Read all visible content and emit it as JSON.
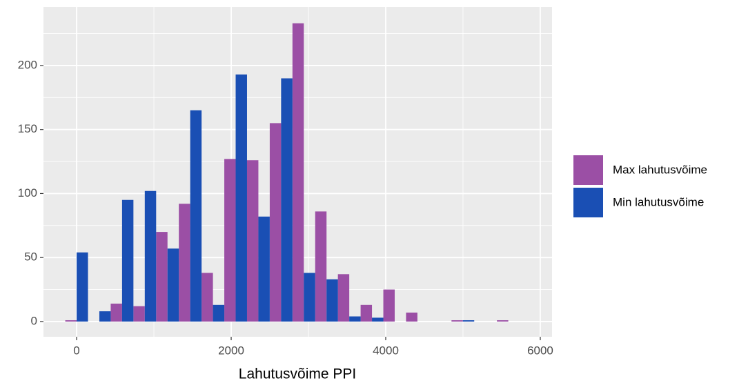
{
  "chart_data": {
    "type": "histogram",
    "x_label": "Lahutusvõime PPI",
    "bins": [
      -147,
      147,
      441,
      735,
      1029,
      1323,
      1617,
      1911,
      2205,
      2499,
      2793,
      3087,
      3381,
      3675,
      3969,
      4263,
      4557,
      4851,
      5145,
      5439,
      5733
    ],
    "series": [
      {
        "name": "Max lahutusvõime",
        "color": "#9b4fa5",
        "values": [
          1,
          0,
          14,
          12,
          70,
          92,
          38,
          127,
          126,
          155,
          233,
          86,
          37,
          13,
          25,
          7,
          0,
          1,
          0,
          1
        ]
      },
      {
        "name": "Min lahutusvõime",
        "color": "#1a4fb4",
        "values": [
          54,
          8,
          95,
          102,
          57,
          165,
          13,
          193,
          82,
          190,
          38,
          33,
          4,
          3,
          0,
          0,
          0,
          1,
          0,
          0
        ]
      }
    ],
    "xlim": [
      -429,
      6152
    ],
    "xticks": [
      0,
      2000,
      4000,
      6000
    ],
    "xminorticks": [
      1000,
      3000,
      5000
    ],
    "ylim": [
      -11.9,
      245.8
    ],
    "yticks": [
      0,
      50,
      100,
      150,
      200
    ],
    "yminorticks": [
      25,
      75,
      125,
      175,
      225
    ],
    "grid": true,
    "legend": "right"
  }
}
